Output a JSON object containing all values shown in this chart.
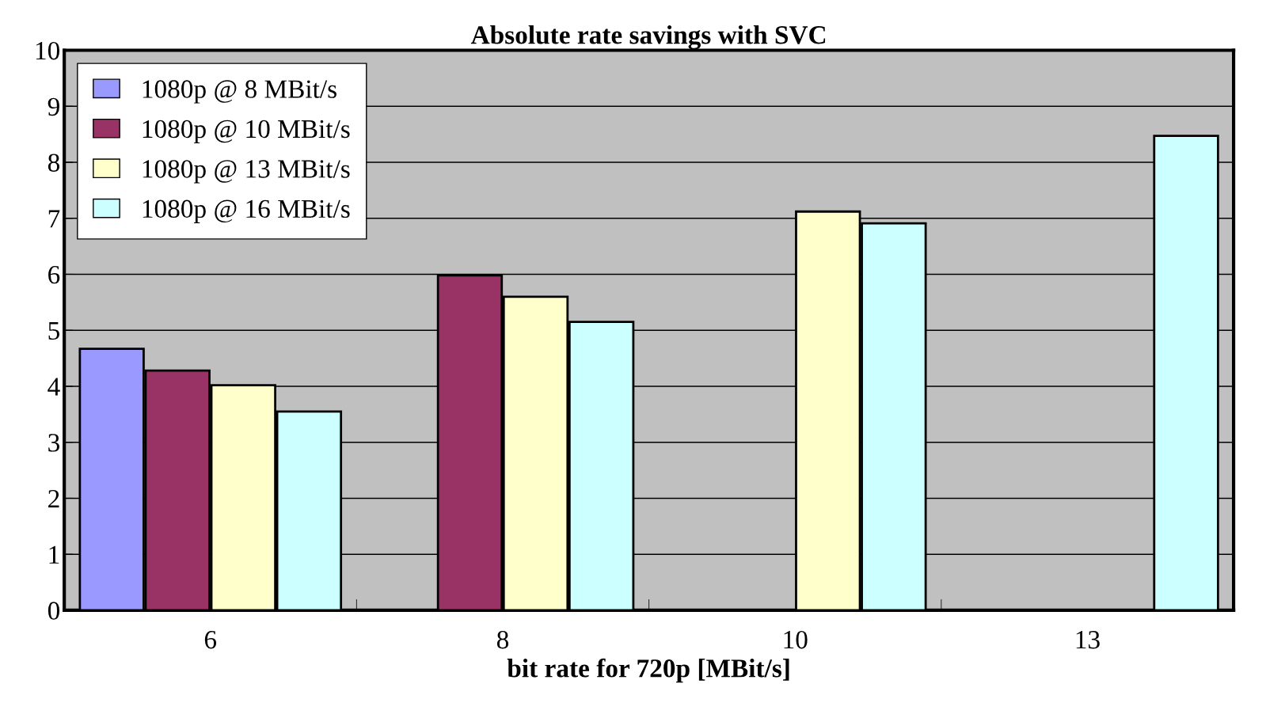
{
  "chart_data": {
    "type": "bar",
    "title": "Absolute rate savings with SVC",
    "xlabel": "bit rate for 720p [MBit/s]",
    "categories": [
      "6",
      "8",
      "10",
      "13"
    ],
    "series": [
      {
        "name": "1080p @ 8 MBit/s",
        "color": "#9999ff",
        "values": [
          4.67,
          null,
          null,
          null
        ]
      },
      {
        "name": "1080p @ 10 MBit/s",
        "color": "#993366",
        "values": [
          4.28,
          5.98,
          null,
          null
        ]
      },
      {
        "name": "1080p @ 13 MBit/s",
        "color": "#ffffcc",
        "values": [
          4.02,
          5.6,
          7.12,
          null
        ]
      },
      {
        "name": "1080p @ 16 MBit/s",
        "color": "#ccffff",
        "values": [
          3.55,
          5.15,
          6.91,
          8.47
        ]
      }
    ],
    "ylim": [
      0,
      10
    ],
    "yticks": [
      0,
      1,
      2,
      3,
      4,
      5,
      6,
      7,
      8,
      9,
      10
    ],
    "grid": "y",
    "legend": "top left"
  }
}
